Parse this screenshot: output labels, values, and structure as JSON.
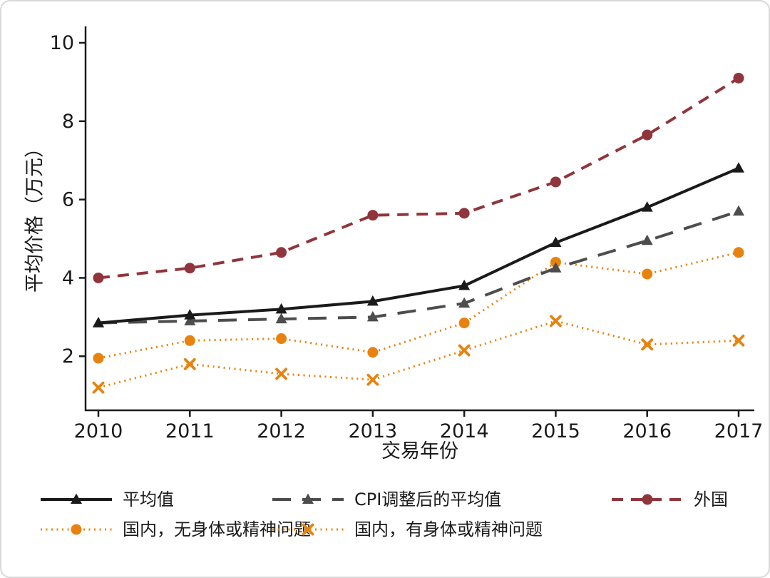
{
  "chart_data": {
    "type": "line",
    "title": "",
    "xlabel": "交易年份",
    "ylabel": "平均价格（万元）",
    "x": [
      2010,
      2011,
      2012,
      2013,
      2014,
      2015,
      2016,
      2017
    ],
    "yticks": [
      2,
      4,
      6,
      8,
      10
    ],
    "ylim": [
      0.62,
      10.42
    ],
    "grid": false,
    "legend_position": "bottom",
    "axis_color": "#1a1a1a",
    "series": [
      {
        "id": "mean",
        "name": "平均值",
        "color": "#1a1a1a",
        "line": "solid",
        "marker": "triangle",
        "values": [
          2.85,
          3.05,
          3.2,
          3.4,
          3.8,
          4.9,
          5.8,
          6.8
        ]
      },
      {
        "id": "cpi-adjusted-mean",
        "name": "CPI调整后的平均值",
        "color": "#4d4d4d",
        "line": "longdash",
        "marker": "triangle",
        "values": [
          2.85,
          2.9,
          2.95,
          3.0,
          3.35,
          4.25,
          4.95,
          5.7
        ]
      },
      {
        "id": "foreign",
        "name": "外国",
        "color": "#90353b",
        "line": "dash",
        "marker": "circle",
        "values": [
          4.0,
          4.25,
          4.65,
          5.6,
          5.65,
          6.45,
          7.65,
          9.1
        ]
      },
      {
        "id": "domestic-no-issues",
        "name": "国内，无身体或精神问题",
        "color": "#e8820e",
        "line": "dot",
        "marker": "circle",
        "values": [
          1.95,
          2.4,
          2.45,
          2.1,
          2.85,
          4.4,
          4.1,
          4.65
        ]
      },
      {
        "id": "domestic-with-issues",
        "name": "国内，有身体或精神问题",
        "color": "#e8820e",
        "line": "dot",
        "marker": "x",
        "values": [
          1.2,
          1.8,
          1.55,
          1.4,
          2.15,
          2.9,
          2.3,
          2.4
        ]
      }
    ]
  }
}
